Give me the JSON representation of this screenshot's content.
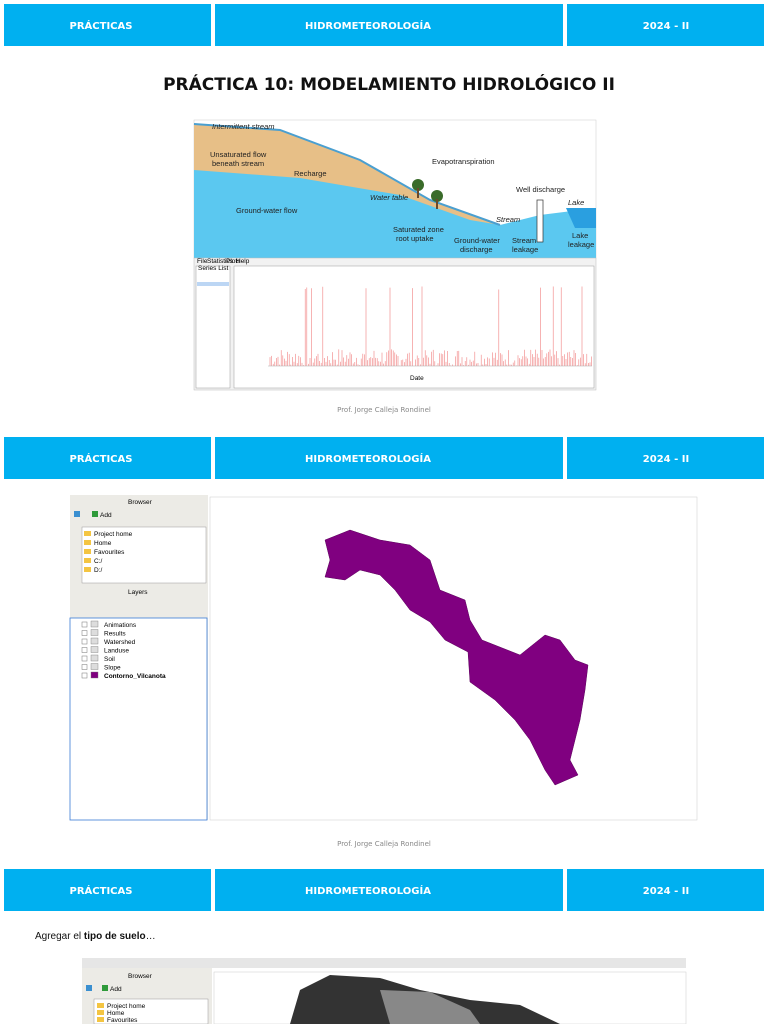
{
  "header": {
    "left": "PRÁCTICAS",
    "center": "HIDROMETEOROLOGÍA",
    "right": "2024 - II"
  },
  "slides": [
    {
      "title": "PRÁCTICA 10: MODELAMIENTO HIDROLÓGICO II",
      "figure": {
        "labels": [
          "Intermittent stream",
          "Unsaturated flow",
          "beneath stream",
          "Recharge",
          "Evapotranspiration",
          "Well discharge",
          "Lake",
          "Water table",
          "Ground-water flow",
          "Saturated zone",
          "root uptake",
          "Ground-water",
          "discharge",
          "Stream",
          "leakage",
          "Lake",
          "leakage",
          "Stream"
        ],
        "menu": [
          "File",
          "Statistics",
          "Plots",
          "Help"
        ],
        "series_list": "Series List",
        "x_label": "Date"
      },
      "footer": "Prof. Jorge Calleja Rondinel"
    },
    {
      "browser": {
        "title": "Browser",
        "add": "Add",
        "items": [
          "Project home",
          "Home",
          "Favourites",
          "C:/",
          "D:/"
        ]
      },
      "layers": {
        "title": "Layers",
        "items": [
          "Animations",
          "Results",
          "Watershed",
          "Landuse",
          "Soil",
          "Slope",
          "Contorno_Vilcanota"
        ]
      },
      "footer": "Prof. Jorge Calleja Rondinel"
    },
    {
      "text": {
        "before": "Agregar el ",
        "bold": "tipo de suelo",
        "after": "…"
      },
      "browser": {
        "title": "Browser",
        "add": "Add",
        "items": [
          "Project home",
          "Home",
          "Favourites"
        ]
      }
    }
  ]
}
